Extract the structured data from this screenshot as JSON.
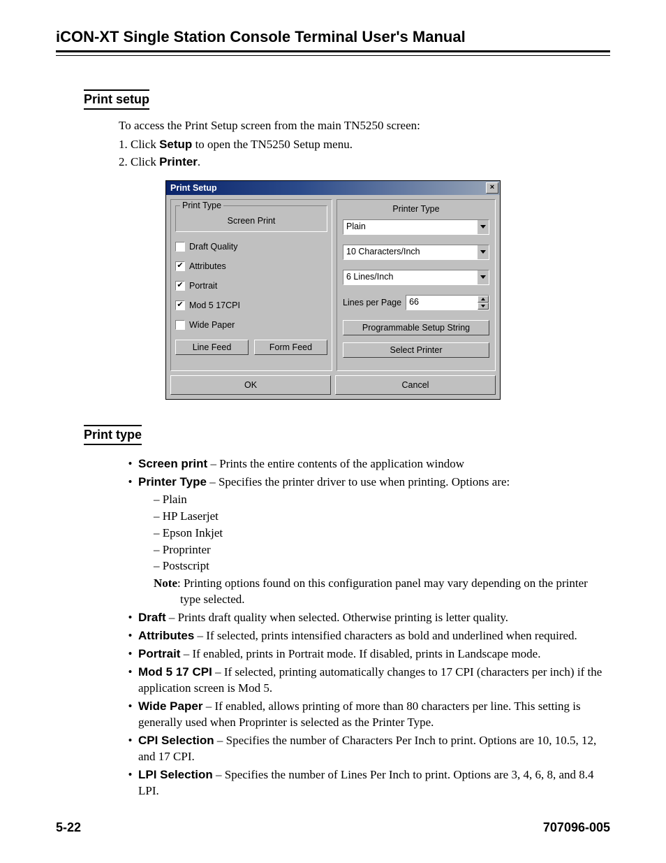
{
  "manual_title": "iCON-XT Single Station Console Terminal User's Manual",
  "section1": {
    "heading": "Print setup",
    "intro": "To access the Print Setup screen from the main TN5250 screen:",
    "step1_prefix": "1. Click ",
    "step1_bold": "Setup",
    "step1_suffix": " to open the TN5250 Setup menu.",
    "step2_prefix": "2. Click ",
    "step2_bold": "Printer",
    "step2_suffix": "."
  },
  "dialog": {
    "title": "Print Setup",
    "close_glyph": "×",
    "fieldset_legend": "Print Type",
    "screen_print": "Screen Print",
    "checkboxes": [
      {
        "label": "Draft Quality",
        "checked": false
      },
      {
        "label": "Attributes",
        "checked": true
      },
      {
        "label": "Portrait",
        "checked": true
      },
      {
        "label": "Mod 5 17CPI",
        "checked": true
      },
      {
        "label": "Wide Paper",
        "checked": false
      }
    ],
    "left_buttons": [
      "Line Feed",
      "Form Feed"
    ],
    "right_label": "Printer Type",
    "combo_printer": "Plain",
    "combo_cpi": "10 Characters/Inch",
    "combo_lpi": "6 Lines/Inch",
    "lpp_label": "Lines per Page",
    "lpp_value": "66",
    "btn_prog": "Programmable Setup String",
    "btn_select": "Select Printer",
    "btn_ok": "OK",
    "btn_cancel": "Cancel",
    "colors": {
      "dialog_bg": "#c0c0c0",
      "title_grad_from": "#0a246a",
      "title_grad_to": "#9aa7b8",
      "border_dark": "#808080",
      "border_shadow": "#404040",
      "border_light": "#ffffff",
      "field_bg": "#ffffff"
    }
  },
  "section2": {
    "heading": "Print type",
    "items": {
      "screen_print": {
        "term": "Screen print",
        "desc": " – Prints the entire contents of the application window"
      },
      "printer_type": {
        "term": "Printer Type",
        "desc": " – Specifies the printer driver to use when printing. Options are:"
      },
      "printer_type_options": [
        "Plain",
        "HP Laserjet",
        "Epson Inkjet",
        "Proprinter",
        "Postscript"
      ],
      "printer_type_note_bold": "Note",
      "printer_type_note": ": Printing options found on this configuration panel may vary depending on the printer type selected.",
      "draft": {
        "term": "Draft",
        "desc": " – Prints draft quality when selected. Otherwise printing is letter quality."
      },
      "attributes": {
        "term": "Attributes",
        "desc": " – If selected, prints intensified characters as bold and underlined when required."
      },
      "portrait": {
        "term": "Portrait",
        "desc": " – If enabled, prints in Portrait mode. If disabled, prints in Landscape mode."
      },
      "mod5": {
        "term": "Mod 5 17 CPI",
        "desc": " – If selected, printing automatically changes to 17 CPI (characters per inch) if the application screen is Mod 5."
      },
      "wide": {
        "term": "Wide Paper",
        "desc": " – If enabled, allows printing of more than 80 characters per line. This setting is generally used when Proprinter is selected as the Printer Type."
      },
      "cpi": {
        "term": "CPI Selection",
        "desc": " – Specifies the number of Characters Per Inch to print. Options are 10, 10.5, 12, and 17 CPI."
      },
      "lpi": {
        "term": "LPI Selection",
        "desc": " – Specifies the number of Lines Per Inch to print. Options are 3, 4, 6, 8, and 8.4 LPI."
      }
    }
  },
  "footer": {
    "page": "5-22",
    "docnum": "707096-005"
  }
}
